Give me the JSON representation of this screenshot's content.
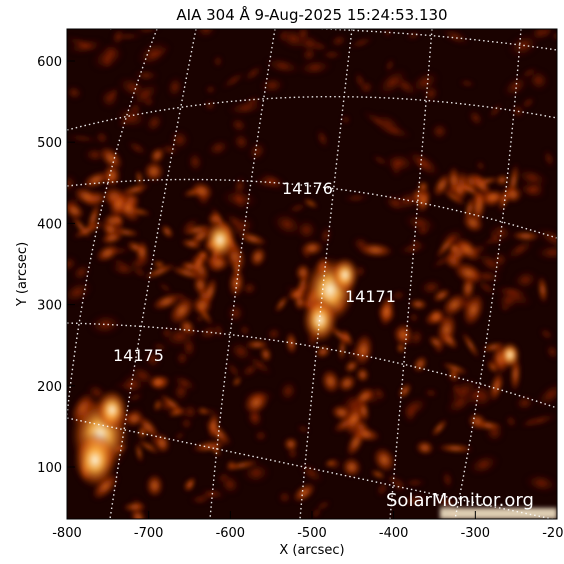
{
  "figure": {
    "title": "AIA 304 Å  9-Aug-2025 15:24:53.130",
    "xlabel": "X (arcsec)",
    "ylabel": "Y (arcsec)",
    "xticks": [
      "-800",
      "-700",
      "-600",
      "-500",
      "-400",
      "-300",
      "-200"
    ],
    "yticks": [
      "100",
      "200",
      "300",
      "400",
      "500",
      "600"
    ],
    "regions": [
      {
        "id": "region-14176",
        "label": "14176"
      },
      {
        "id": "region-14171",
        "label": "14171"
      },
      {
        "id": "region-14175",
        "label": "14175"
      }
    ],
    "credit": "SolarMonitor.org"
  },
  "colors": {
    "background": "#000000",
    "plasma_dark": "#3a0500",
    "plasma_mid": "#b83a00",
    "plasma_bright": "#ff9a30",
    "plasma_core": "#fff4d0",
    "grid": "#ffffff"
  }
}
